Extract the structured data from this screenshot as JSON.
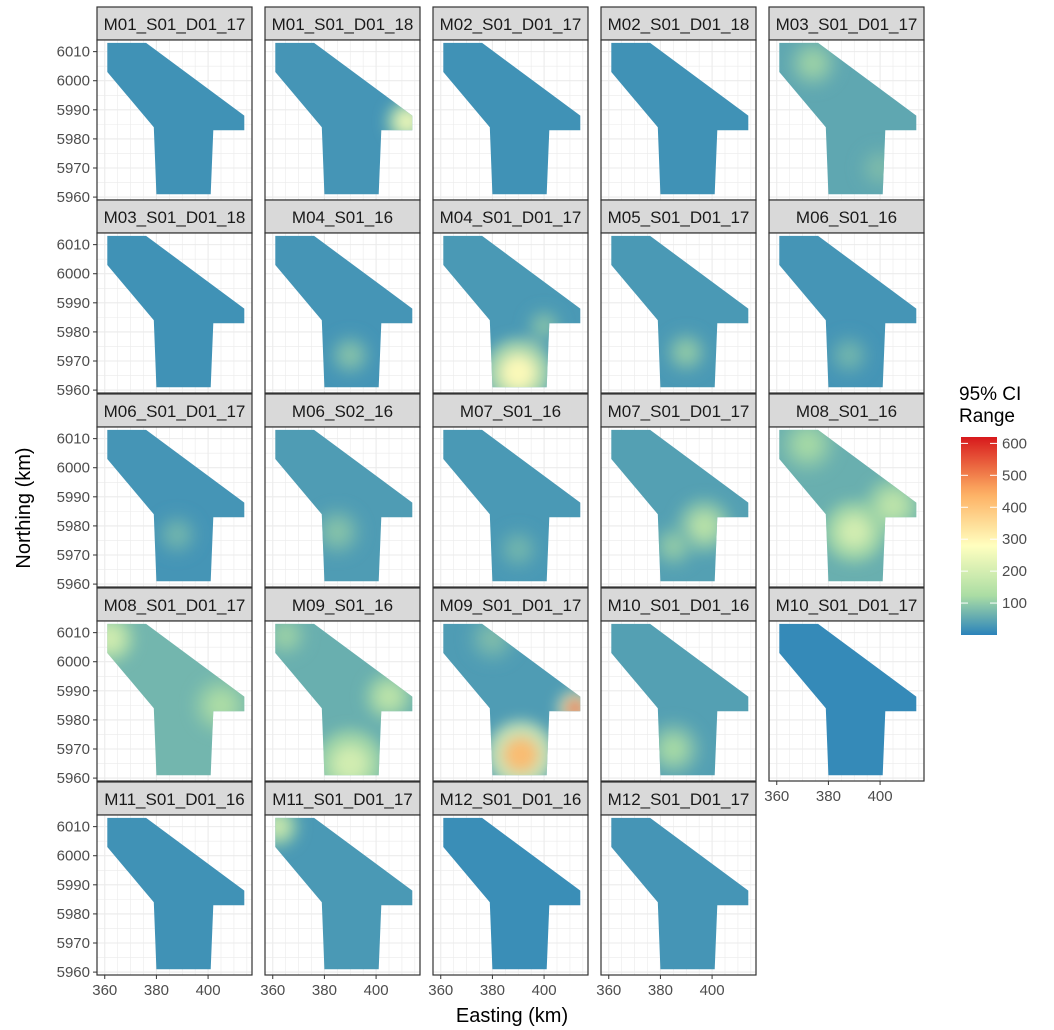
{
  "chart_data": {
    "type": "heatmap",
    "xlabel": "Easting (km)",
    "ylabel": "Northing (km)",
    "x_ticks": [
      360,
      380,
      400
    ],
    "y_ticks": [
      5960,
      5970,
      5980,
      5990,
      6000,
      6010
    ],
    "xlim": [
      357,
      417
    ],
    "ylim": [
      5959,
      6014
    ],
    "grid": true,
    "legend": {
      "title_lines": [
        "95% CI",
        "Range"
      ],
      "ticks": [
        100,
        200,
        300,
        400,
        500,
        600
      ],
      "min": 0,
      "max": 620,
      "placement": "right",
      "colors": [
        "#2b83ba",
        "#abdda4",
        "#ffffbf",
        "#fdae61",
        "#d7191c"
      ]
    },
    "panels": [
      {
        "label": "M01_S01_D01_17",
        "display": "M01_S01_D01_17",
        "base": 20,
        "hotspots": []
      },
      {
        "label": "M01_S01_D01_18",
        "display": "M01_S01_D01_18",
        "base": 25,
        "hotspots": [
          {
            "x": 412,
            "y": 5986,
            "r": 6,
            "v": 260
          }
        ]
      },
      {
        "label": "M02_S01_D01_17",
        "display": "M02_S01_D01_17",
        "base": 20,
        "hotspots": []
      },
      {
        "label": "M02_S01_D01_18",
        "display": "M02_S01_D01_18",
        "base": 20,
        "hotspots": []
      },
      {
        "label": "M03_S01_D01_17",
        "display": "M03_S01_D01_17",
        "base": 50,
        "hotspots": [
          {
            "x": 374,
            "y": 6006,
            "r": 7,
            "v": 110
          },
          {
            "x": 400,
            "y": 5970,
            "r": 6,
            "v": 80
          }
        ]
      },
      {
        "label": "M03_S01_D01_18",
        "display": "M03_S01_D01_18",
        "base": 20,
        "hotspots": []
      },
      {
        "label": "M04_S01_16",
        "display": "M04_S01_16",
        "base": 25,
        "hotspots": [
          {
            "x": 390,
            "y": 5972,
            "r": 6,
            "v": 90
          }
        ]
      },
      {
        "label": "M04_S01_D01_17",
        "display": "M04_S01_D01_17",
        "base": 30,
        "hotspots": [
          {
            "x": 390,
            "y": 5966,
            "r": 10,
            "v": 290
          },
          {
            "x": 400,
            "y": 5982,
            "r": 5,
            "v": 90
          }
        ]
      },
      {
        "label": "M05_S01_D01_17",
        "display": "M05_S01_D01_17",
        "base": 30,
        "hotspots": [
          {
            "x": 390,
            "y": 5973,
            "r": 6,
            "v": 100
          }
        ]
      },
      {
        "label": "M06_S01_16",
        "display": "M06_S01_16",
        "base": 25,
        "hotspots": [
          {
            "x": 388,
            "y": 5972,
            "r": 6,
            "v": 70
          }
        ]
      },
      {
        "label": "M06_S01_D01_17",
        "display": "M06_S01_D01_17",
        "base": 25,
        "hotspots": [
          {
            "x": 388,
            "y": 5977,
            "r": 6,
            "v": 70
          }
        ]
      },
      {
        "label": "M06_S02_16",
        "display": "M06_S02_16",
        "base": 35,
        "hotspots": [
          {
            "x": 385,
            "y": 5978,
            "r": 7,
            "v": 90
          }
        ]
      },
      {
        "label": "M07_S01_16",
        "display": "M07_S01_16",
        "base": 30,
        "hotspots": [
          {
            "x": 390,
            "y": 5972,
            "r": 6,
            "v": 70
          }
        ]
      },
      {
        "label": "M07_S01_D01_17",
        "display": "M07_S01_D01_17",
        "base": 40,
        "hotspots": [
          {
            "x": 397,
            "y": 5980,
            "r": 8,
            "v": 150
          },
          {
            "x": 385,
            "y": 5973,
            "r": 6,
            "v": 100
          }
        ]
      },
      {
        "label": "M08_S01_16",
        "display": "M08_S01_16",
        "base": 60,
        "hotspots": [
          {
            "x": 390,
            "y": 5978,
            "r": 9,
            "v": 200
          },
          {
            "x": 405,
            "y": 5987,
            "r": 8,
            "v": 160
          },
          {
            "x": 372,
            "y": 6008,
            "r": 8,
            "v": 120
          }
        ]
      },
      {
        "label": "M08_S01_D01_17",
        "display": "M08_S01_D01_17",
        "base": 70,
        "hotspots": [
          {
            "x": 362,
            "y": 6008,
            "r": 7,
            "v": 200
          },
          {
            "x": 405,
            "y": 5985,
            "r": 8,
            "v": 130
          }
        ]
      },
      {
        "label": "M09_S01_16",
        "display": "M09_S01_16",
        "base": 60,
        "hotspots": [
          {
            "x": 390,
            "y": 5965,
            "r": 10,
            "v": 200
          },
          {
            "x": 405,
            "y": 5988,
            "r": 7,
            "v": 160
          },
          {
            "x": 365,
            "y": 6009,
            "r": 6,
            "v": 110
          }
        ]
      },
      {
        "label": "M09_S01_D01_17",
        "display": "M09_S01_D01_17",
        "base": 35,
        "hotspots": [
          {
            "x": 391,
            "y": 5968,
            "r": 10,
            "v": 420
          },
          {
            "x": 412,
            "y": 5984,
            "r": 5,
            "v": 560
          },
          {
            "x": 380,
            "y": 6008,
            "r": 7,
            "v": 80
          }
        ]
      },
      {
        "label": "M10_S01_D01_16",
        "display": "M10_S01_D01_16",
        "base": 40,
        "hotspots": [
          {
            "x": 385,
            "y": 5970,
            "r": 8,
            "v": 120
          }
        ]
      },
      {
        "label": "M10_S01_D01_17",
        "display": "M10_S01_D01_17",
        "base": 10,
        "hotspots": []
      },
      {
        "label": "M11_S01_D01_16",
        "display": "M11_S01_D01_16",
        "base": 20,
        "hotspots": []
      },
      {
        "label": "M11_S01_D01_17",
        "display": "M11_S01_D01_17",
        "base": 30,
        "hotspots": [
          {
            "x": 362,
            "y": 6010,
            "r": 6,
            "v": 190
          }
        ]
      },
      {
        "label": "M12_S01_D01_16",
        "display": "M12_S01_D01_16",
        "base": 15,
        "hotspots": []
      },
      {
        "label": "M12_S01_D01_17",
        "display": "M12_S01_D01_17",
        "base": 25,
        "hotspots": []
      }
    ]
  }
}
